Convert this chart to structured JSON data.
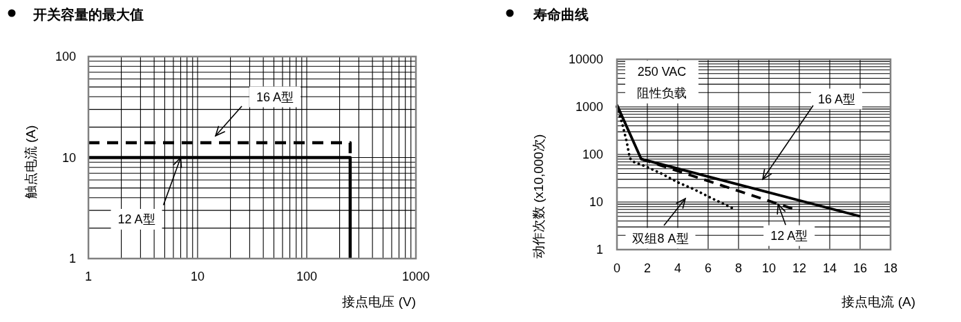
{
  "chart_data": [
    {
      "type": "line",
      "title": "开关容量的最大值",
      "xlabel": "接点电压 (V)",
      "ylabel": "触点电流 (A)",
      "series": [
        {
          "color": "#000000",
          "line_style": "solid",
          "x": [
            1,
            250,
            250
          ],
          "values": [
            10,
            10,
            1
          ]
        },
        {
          "color": "#000000",
          "line_style": "dashed",
          "x": [
            1,
            250,
            250
          ],
          "values": [
            14,
            14,
            10
          ]
        }
      ],
      "xlim": [
        1,
        1000
      ],
      "ylim": [
        1,
        100
      ],
      "xticks": [
        1,
        10,
        100,
        1000
      ],
      "yticks": [
        1,
        10,
        100
      ],
      "log": "xy",
      "grid": true,
      "annotations": [
        "16 A型",
        {
          "text": "12 A型",
          "x": 7,
          "y": 10
        }
      ]
    },
    {
      "type": "line",
      "title": "寿命曲线",
      "xlabel": "接点电流 (A)",
      "ylabel": "动作次数 (x10,000次)",
      "series": [
        {
          "color": "#000000",
          "line_style": "solid",
          "x": [
            0,
            1.6,
            16
          ],
          "values": [
            1100,
            80,
            5
          ]
        },
        {
          "color": "#000000",
          "line_style": "dashed",
          "x": [
            1.6,
            12
          ],
          "values": [
            80,
            6.5
          ]
        },
        {
          "color": "#000000",
          "line_style": "dotted",
          "x": [
            0,
            0.35,
            0.65,
            0.85,
            1.1,
            1.9,
            2.9,
            4,
            5,
            6.1,
            7.8
          ],
          "values": [
            1000,
            440,
            180,
            83,
            70,
            56,
            40,
            26,
            19,
            12.6,
            6.9
          ]
        }
      ],
      "xlim": [
        0,
        18
      ],
      "ylim": [
        1,
        10000
      ],
      "xticks": [
        0,
        2,
        4,
        6,
        8,
        10,
        12,
        14,
        16,
        18
      ],
      "yticks": [
        1,
        10,
        100,
        1000,
        10000
      ],
      "log": "y",
      "grid": true,
      "annotations": [
        "250 VAC",
        "阻性负载",
        "16 A型",
        "双组8 A型",
        {
          "text": "12 A型",
          "x": 10.6,
          "y": 9
        }
      ]
    }
  ]
}
